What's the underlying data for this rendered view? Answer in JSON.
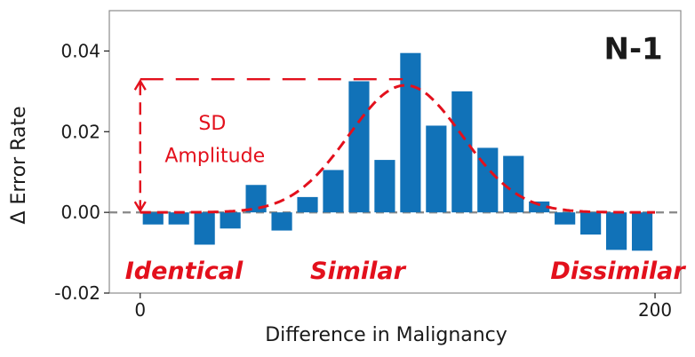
{
  "chart_data": {
    "type": "bar",
    "panel_label": "N-1",
    "xlabel": "Difference in Malignancy",
    "ylabel": "Δ Error Rate",
    "xlim": [
      -12,
      210
    ],
    "ylim": [
      -0.02,
      0.05
    ],
    "x_ticks": [
      {
        "value": 0,
        "label": "0"
      },
      {
        "value": 200,
        "label": "200"
      }
    ],
    "y_ticks": [
      {
        "value": -0.02,
        "label": "-0.02"
      },
      {
        "value": 0.0,
        "label": "0.00"
      },
      {
        "value": 0.02,
        "label": "0.02"
      },
      {
        "value": 0.04,
        "label": "0.04"
      }
    ],
    "bar_width": 8,
    "x": [
      5,
      15,
      25,
      35,
      45,
      55,
      65,
      75,
      85,
      95,
      105,
      115,
      125,
      135,
      145,
      155,
      165,
      175,
      185,
      195
    ],
    "values": [
      -0.003,
      -0.003,
      -0.008,
      -0.004,
      0.0068,
      -0.0045,
      0.0038,
      0.0105,
      0.0325,
      0.013,
      0.0395,
      0.0215,
      0.03,
      0.016,
      0.014,
      0.0027,
      -0.003,
      -0.0055,
      -0.0093,
      -0.0095
    ],
    "fit_curve": {
      "type": "gaussian",
      "amplitude": 0.0315,
      "mean": 103,
      "sd": 22,
      "style": "dashed"
    },
    "zero_line": {
      "y": 0,
      "style": "dashed"
    },
    "sd_amplitude_marker": {
      "y_top": 0.033,
      "x_start": 0,
      "x_end": 102
    },
    "annotations": {
      "sd_label_line1": "SD",
      "sd_label_line2": "Amplitude",
      "region_identical": "Identical",
      "region_similar": "Similar",
      "region_dissimilar": "Dissimilar"
    },
    "grid": false,
    "colors": {
      "bar": "#1172b8",
      "fit_curve": "#e3101c",
      "annotation": "#e3101c",
      "zero_line": "#8c8c8c",
      "axis": "#1a1a1a",
      "frame": "#8c8c8c"
    }
  }
}
